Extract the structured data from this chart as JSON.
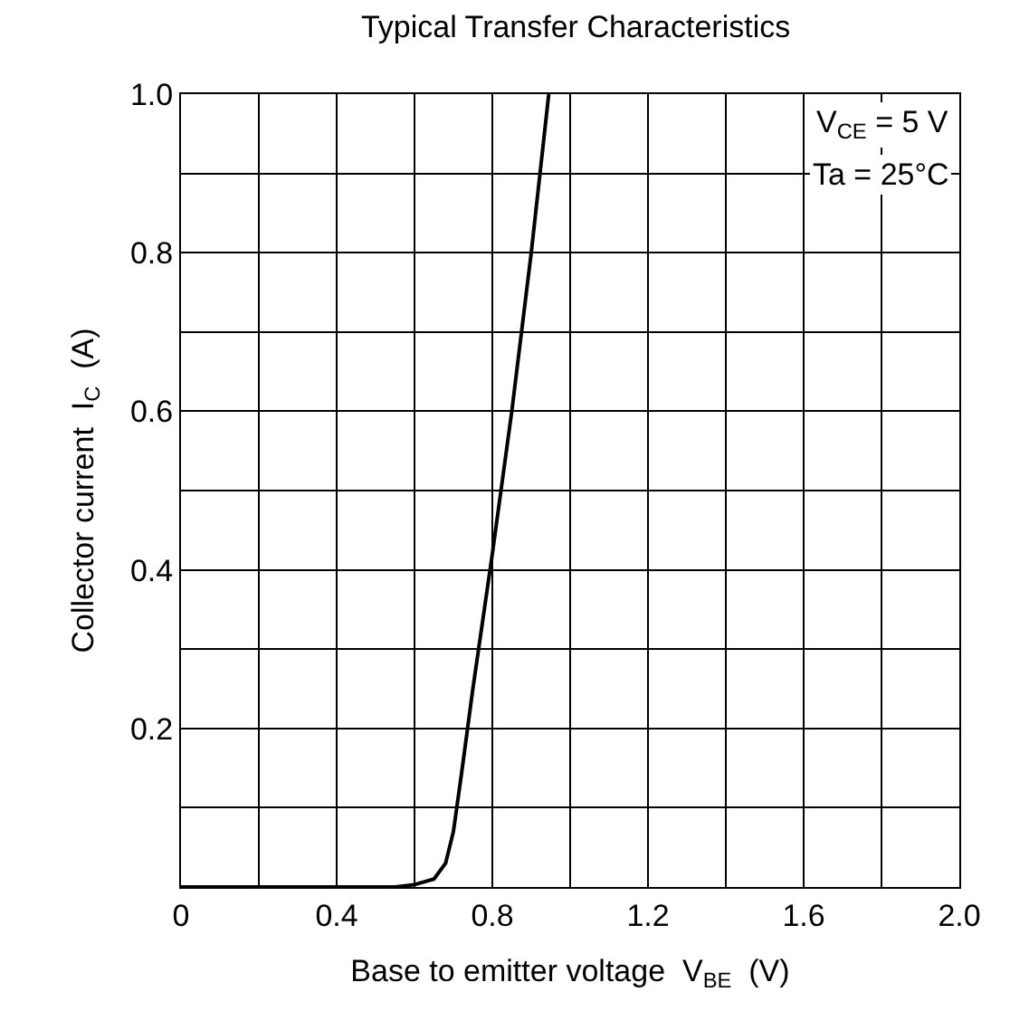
{
  "chart_data": {
    "type": "line",
    "title": "Typical Transfer Characteristics",
    "xlabel": "Base to emitter voltage  V$_{BE}$  (V)",
    "ylabel": "Collector current  I$_{C}$  (A)",
    "annotations": [
      "V$_{CE}$ = 5 V",
      "Ta = 25°C"
    ],
    "series": [
      {
        "color": "#000000",
        "x": [
          0,
          0.55,
          0.6,
          0.65,
          0.68,
          0.7,
          0.72,
          0.75,
          0.8,
          0.85,
          0.9,
          0.945
        ],
        "values": [
          0,
          0,
          0.003,
          0.01,
          0.03,
          0.07,
          0.14,
          0.25,
          0.42,
          0.6,
          0.8,
          1.0
        ]
      }
    ],
    "xlim": [
      0,
      2.0
    ],
    "ylim": [
      0,
      1.0
    ],
    "xticks": [
      0,
      {
        "value": 0.2,
        "label": null
      },
      0.4,
      {
        "value": 0.6,
        "label": null
      },
      0.8,
      {
        "value": 1.0,
        "label": null
      },
      1.2,
      {
        "value": 1.4,
        "label": null
      },
      1.6,
      {
        "value": 1.8,
        "label": null
      },
      {
        "value": 2,
        "label": "2.0"
      }
    ],
    "yticks": [
      {
        "value": 0.1,
        "label": null
      },
      0.2,
      {
        "value": 0.3,
        "label": null
      },
      0.4,
      {
        "value": 0.5,
        "label": null
      },
      0.6,
      {
        "value": 0.7,
        "label": null
      },
      0.8,
      {
        "value": 0.9,
        "label": null
      },
      {
        "value": 1,
        "label": "1.0"
      }
    ],
    "grid": true,
    "marker": "none",
    "line_style": "solid"
  }
}
